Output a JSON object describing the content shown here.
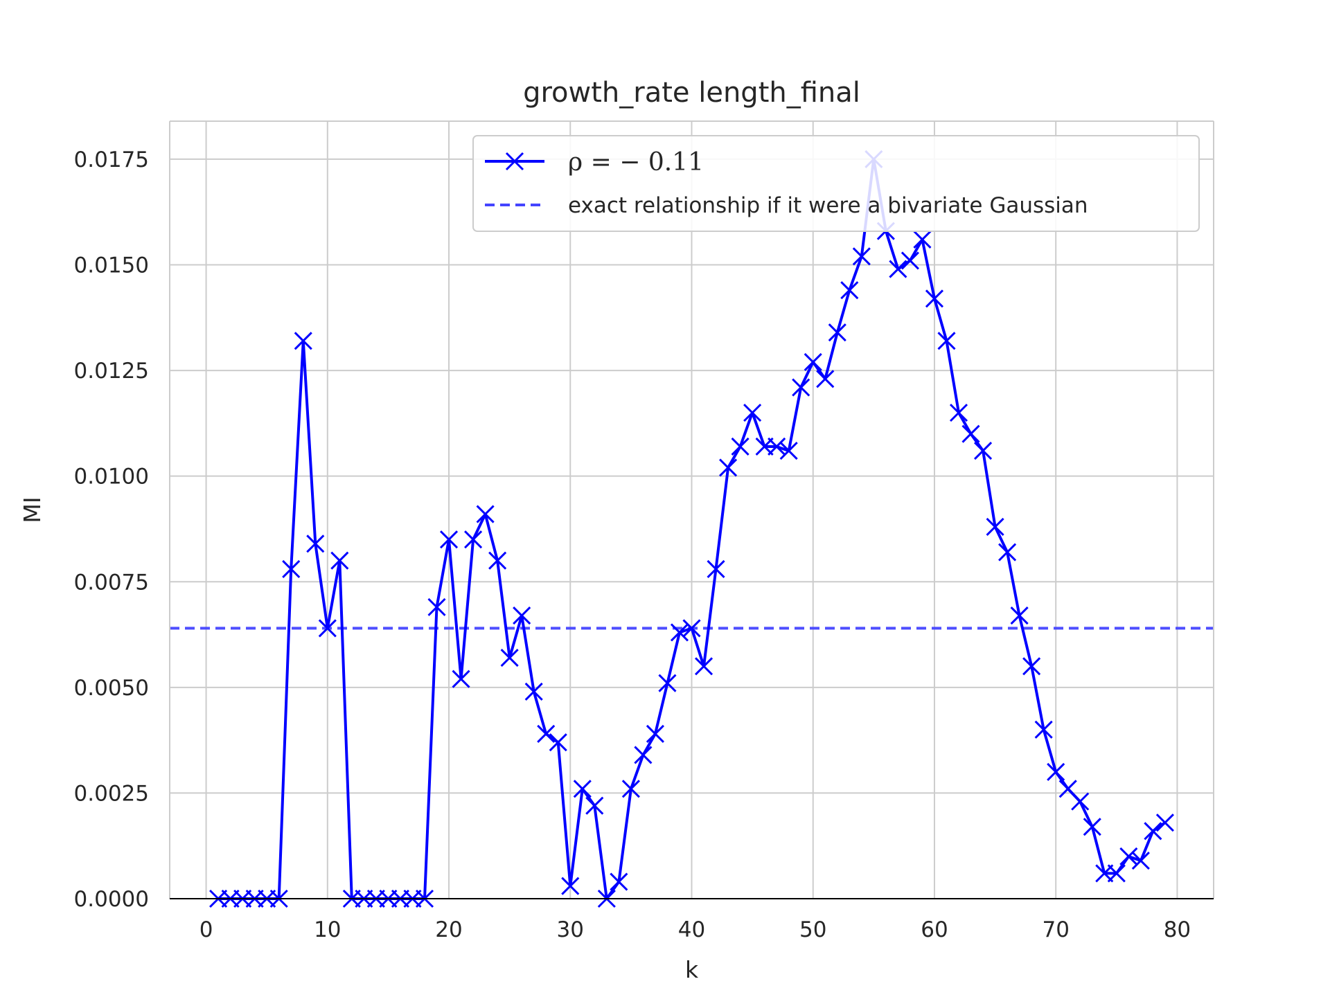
{
  "chart_data": {
    "type": "line",
    "title": "growth_rate length_final",
    "xlabel": "k",
    "ylabel": "MI",
    "xlim": [
      -3,
      83
    ],
    "ylim": [
      0.0,
      0.0184
    ],
    "xticks": [
      0,
      10,
      20,
      30,
      40,
      50,
      60,
      70,
      80
    ],
    "yticks": [
      0.0,
      0.0025,
      0.005,
      0.0075,
      0.01,
      0.0125,
      0.015,
      0.0175
    ],
    "xtick_labels": [
      "0",
      "10",
      "20",
      "30",
      "40",
      "50",
      "60",
      "70",
      "80"
    ],
    "ytick_labels": [
      "0.0000",
      "0.0025",
      "0.0050",
      "0.0075",
      "0.0100",
      "0.0125",
      "0.0150",
      "0.0175"
    ],
    "grid": true,
    "legend_position": "top-right",
    "series": [
      {
        "name": "ρ = − 0.11",
        "color": "#0000ff",
        "marker": "x",
        "x": [
          1,
          2,
          3,
          4,
          5,
          6,
          7,
          8,
          9,
          10,
          11,
          12,
          13,
          14,
          15,
          16,
          17,
          18,
          19,
          20,
          21,
          22,
          23,
          24,
          25,
          26,
          27,
          28,
          29,
          30,
          31,
          32,
          33,
          34,
          35,
          36,
          37,
          38,
          39,
          40,
          41,
          42,
          43,
          44,
          45,
          46,
          47,
          48,
          49,
          50,
          51,
          52,
          53,
          54,
          55,
          56,
          57,
          58,
          59,
          60,
          61,
          62,
          63,
          64,
          65,
          66,
          67,
          68,
          69,
          70,
          71,
          72,
          73,
          74,
          75,
          76,
          77,
          78,
          79
        ],
        "y": [
          0.0,
          0.0,
          0.0,
          0.0,
          0.0,
          0.0,
          0.0078,
          0.0132,
          0.0084,
          0.0064,
          0.008,
          0.0,
          0.0,
          0.0,
          0.0,
          0.0,
          0.0,
          0.0,
          0.0069,
          0.0085,
          0.0052,
          0.0085,
          0.0091,
          0.008,
          0.0057,
          0.0067,
          0.0049,
          0.0039,
          0.0037,
          0.0003,
          0.0026,
          0.0022,
          0.0,
          0.0004,
          0.0026,
          0.0034,
          0.0039,
          0.0051,
          0.0063,
          0.0064,
          0.0055,
          0.0078,
          0.0102,
          0.0107,
          0.0115,
          0.0107,
          0.0107,
          0.0106,
          0.0121,
          0.0127,
          0.0123,
          0.0134,
          0.0144,
          0.0152,
          0.0175,
          0.0158,
          0.0149,
          0.0151,
          0.0156,
          0.0142,
          0.0132,
          0.0115,
          0.011,
          0.0106,
          0.0088,
          0.0082,
          0.0067,
          0.0055,
          0.004,
          0.003,
          0.0026,
          0.0023,
          0.0017,
          0.0006,
          0.0006,
          0.001,
          0.0009,
          0.0016,
          0.0018
        ]
      },
      {
        "name": "exact relationship if it were a bivariate Gaussian",
        "color": "#4444ff",
        "style": "dashed",
        "y": 0.0064
      }
    ]
  }
}
